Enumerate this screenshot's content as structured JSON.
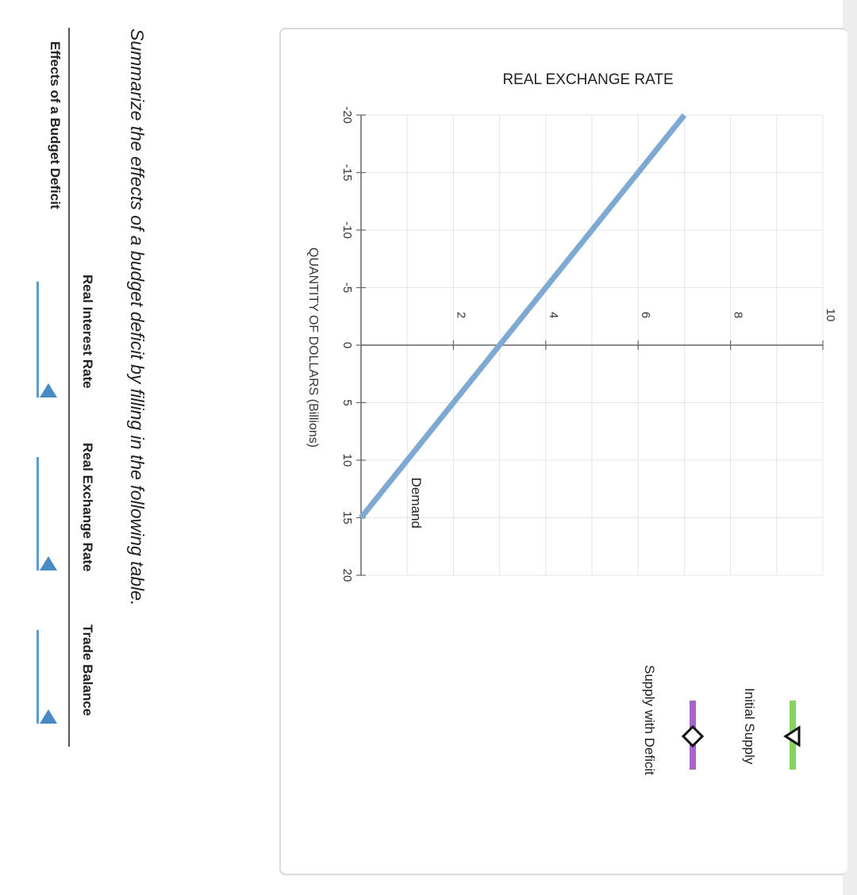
{
  "chart_data": {
    "type": "line",
    "title": "REAL EXCHANGE RATE",
    "xlabel": "QUANTITY OF DOLLARS (Billions)",
    "ylabel": "REAL EXCHANGE RATE",
    "xlim": [
      -20,
      20
    ],
    "ylim": [
      0,
      10
    ],
    "x_ticks": [
      -20,
      -15,
      -10,
      -5,
      0,
      5,
      10,
      15,
      20
    ],
    "y_ticks": [
      0,
      2,
      4,
      6,
      8,
      10
    ],
    "grid": true,
    "series": [
      {
        "name": "Demand",
        "x": [
          -20,
          15
        ],
        "y": [
          7,
          0
        ],
        "color": "#7ea9d3"
      }
    ],
    "legend_position": "right"
  },
  "legend": {
    "items": [
      {
        "label": "Initial Supply",
        "color": "#86d35f",
        "marker": "triangle"
      },
      {
        "label": "Supply with Deficit",
        "color": "#a765c9",
        "marker": "diamond"
      }
    ]
  },
  "instructions": "Summarize the effects of a budget deficit by filling in the following table.",
  "table": {
    "header": "Effects of a Budget Deficit",
    "columns": [
      "Real Interest Rate",
      "Real Exchange Rate",
      "Trade Balance"
    ]
  },
  "colors": {
    "accent": "#5b9bd5",
    "demand_line": "#7ea9d3",
    "grid": "#e4e4e4",
    "axis": "#666666"
  },
  "icons": [
    "triangle-marker-icon",
    "diamond-marker-icon",
    "dropdown-arrow-icon"
  ]
}
